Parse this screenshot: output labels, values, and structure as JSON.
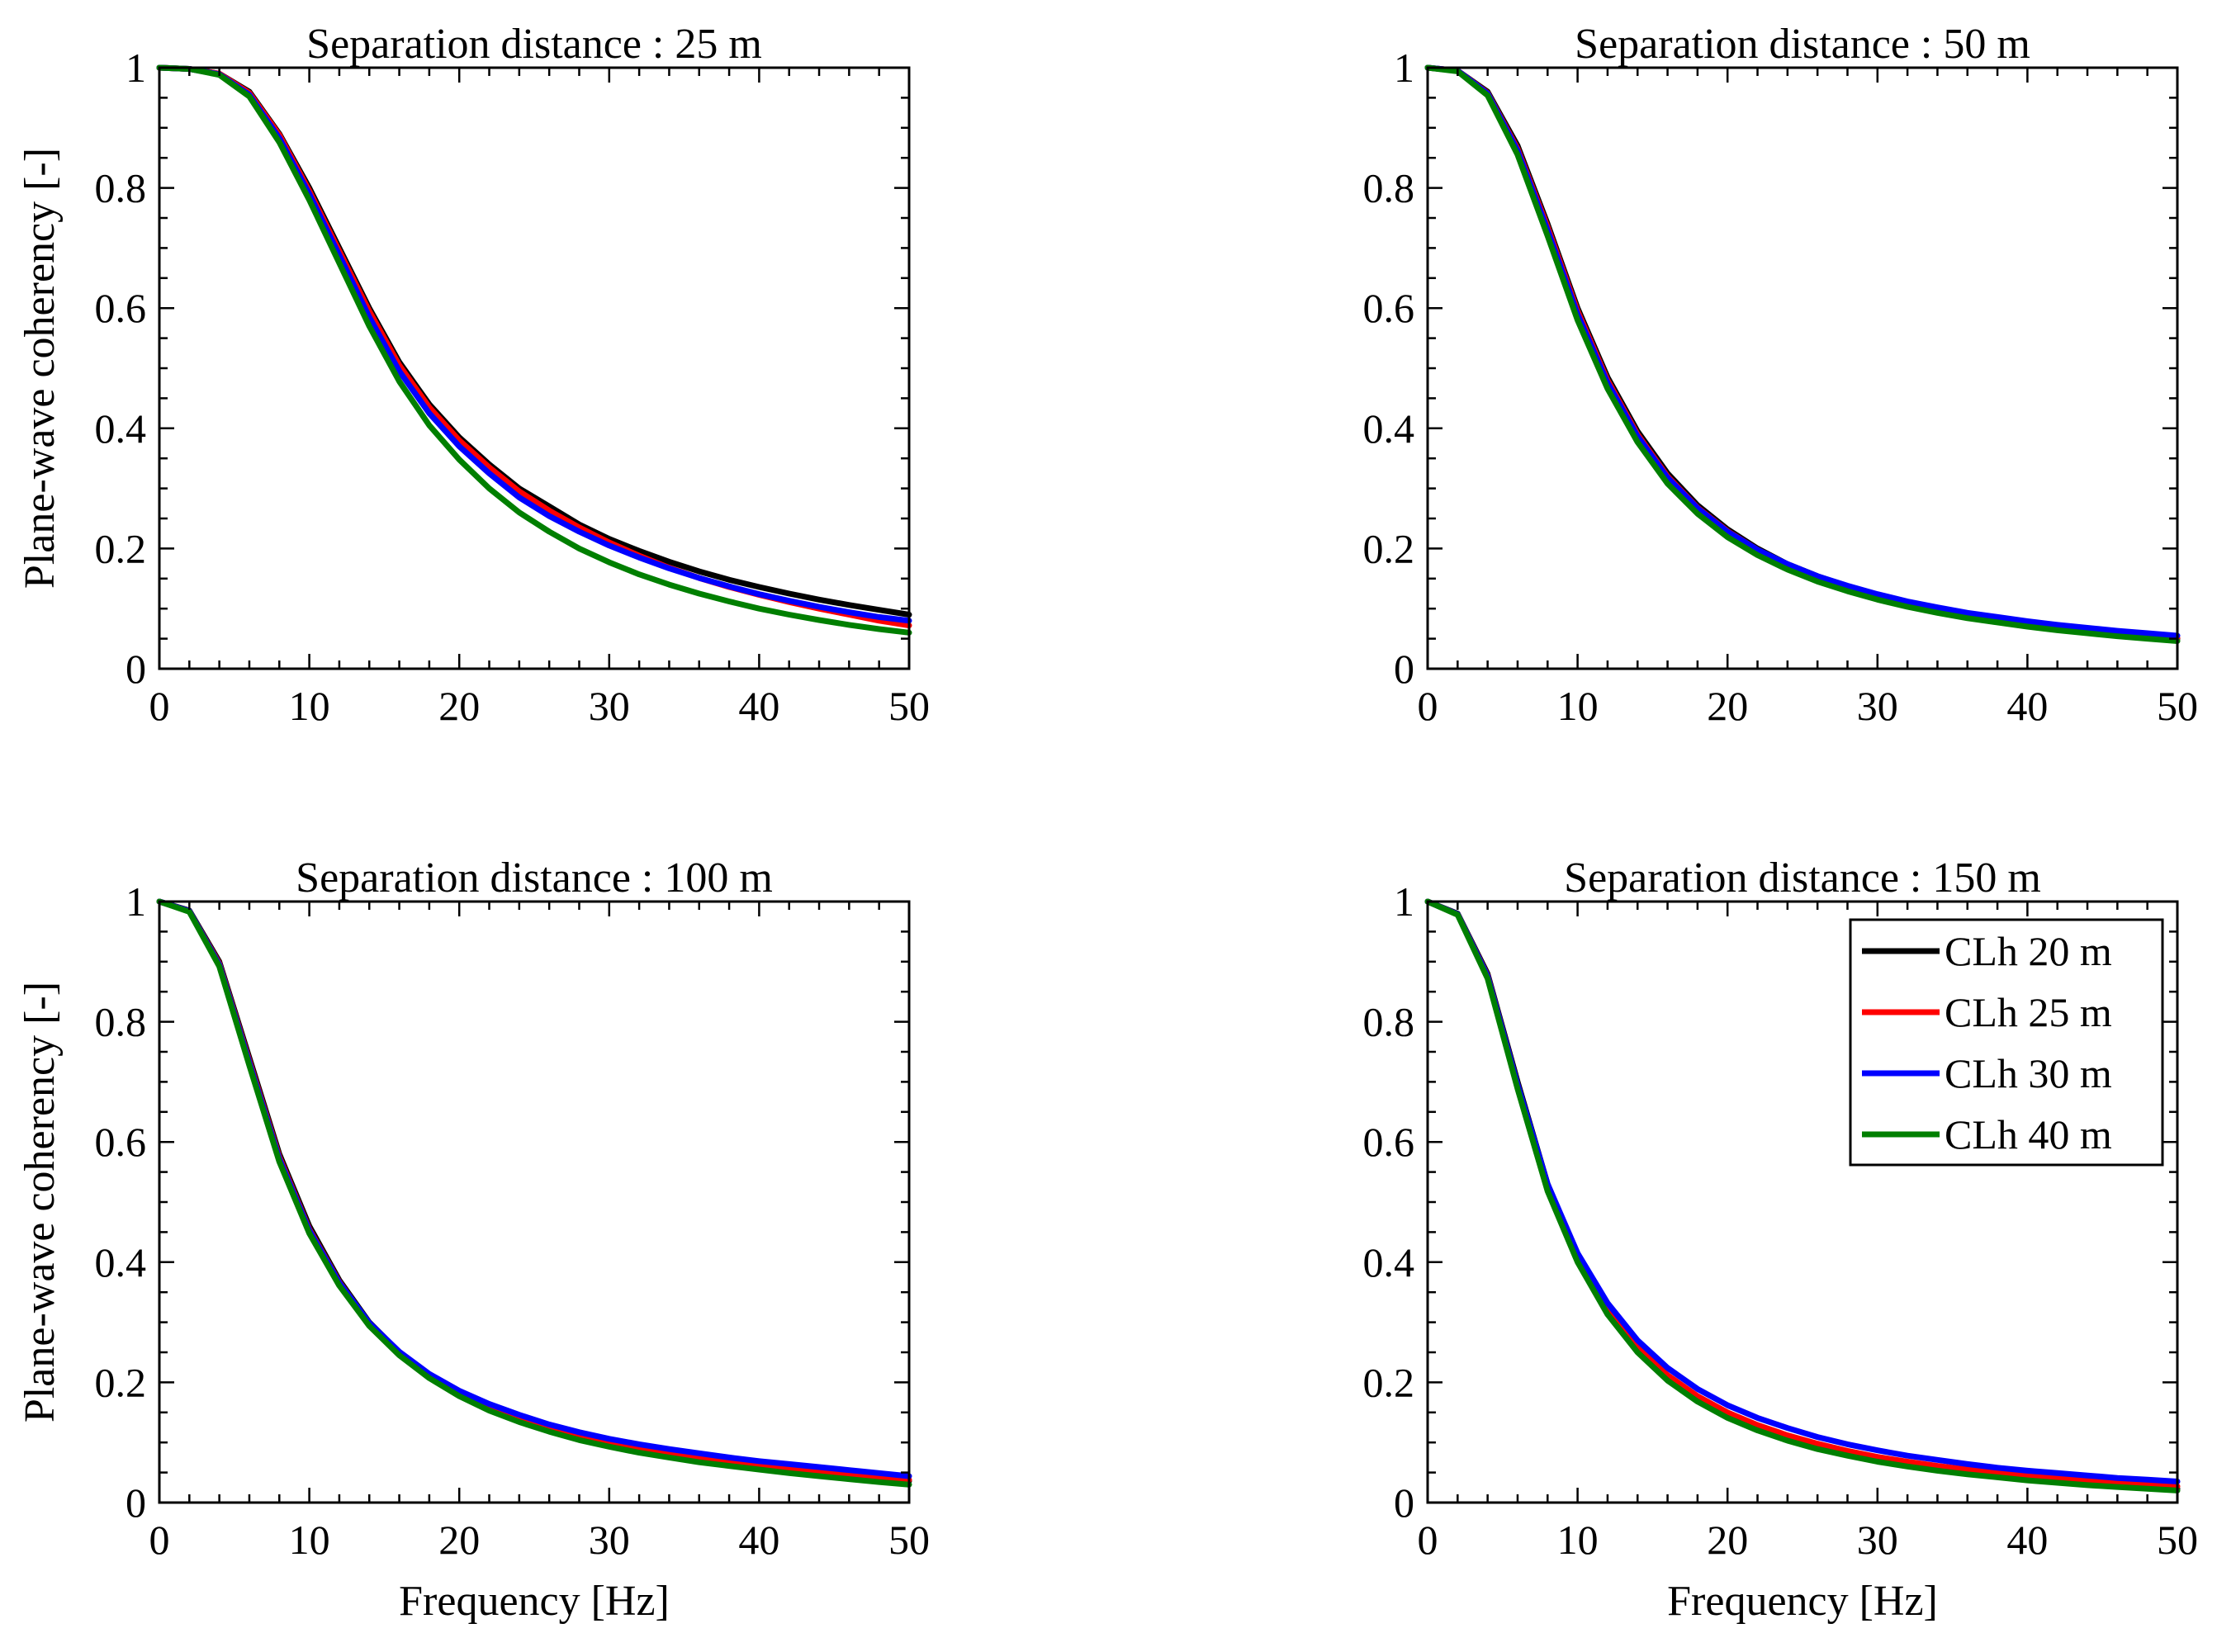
{
  "chart_data": [
    {
      "type": "line",
      "title": "Separation distance : 25 m",
      "xlabel": "",
      "ylabel": "Plane-wave coherency [-]",
      "xlim": [
        0,
        50
      ],
      "ylim": [
        0,
        1
      ],
      "xticks": [
        "0",
        "10",
        "20",
        "30",
        "40",
        "50"
      ],
      "yticks": [
        "0",
        "0.2",
        "0.4",
        "0.6",
        "0.8",
        "1"
      ],
      "legend": false,
      "x": [
        0,
        2,
        4,
        6,
        8,
        10,
        12,
        14,
        16,
        18,
        20,
        22,
        24,
        26,
        28,
        30,
        32,
        34,
        36,
        38,
        40,
        42,
        44,
        46,
        48,
        50
      ],
      "series": [
        {
          "name": "CLh 20 m",
          "values": [
            1.0,
            0.998,
            0.99,
            0.96,
            0.89,
            0.8,
            0.7,
            0.6,
            0.51,
            0.44,
            0.385,
            0.34,
            0.3,
            0.27,
            0.24,
            0.216,
            0.196,
            0.178,
            0.162,
            0.148,
            0.136,
            0.125,
            0.115,
            0.106,
            0.098,
            0.09
          ]
        },
        {
          "name": "CLh 25 m",
          "values": [
            1.0,
            0.998,
            0.99,
            0.958,
            0.888,
            0.795,
            0.695,
            0.595,
            0.505,
            0.435,
            0.38,
            0.335,
            0.295,
            0.263,
            0.235,
            0.21,
            0.188,
            0.168,
            0.151,
            0.136,
            0.123,
            0.111,
            0.1,
            0.09,
            0.08,
            0.072
          ]
        },
        {
          "name": "CLh 30 m",
          "values": [
            1.0,
            0.998,
            0.989,
            0.955,
            0.883,
            0.79,
            0.688,
            0.585,
            0.495,
            0.425,
            0.37,
            0.325,
            0.285,
            0.254,
            0.228,
            0.205,
            0.185,
            0.167,
            0.151,
            0.137,
            0.124,
            0.113,
            0.103,
            0.094,
            0.086,
            0.08
          ]
        },
        {
          "name": "CLh 40 m",
          "values": [
            1.0,
            0.998,
            0.988,
            0.952,
            0.876,
            0.78,
            0.675,
            0.57,
            0.478,
            0.405,
            0.348,
            0.3,
            0.26,
            0.228,
            0.2,
            0.177,
            0.157,
            0.14,
            0.125,
            0.112,
            0.1,
            0.09,
            0.081,
            0.073,
            0.066,
            0.06
          ]
        }
      ]
    },
    {
      "type": "line",
      "title": "Separation distance : 50 m",
      "xlabel": "",
      "ylabel": "",
      "xlim": [
        0,
        50
      ],
      "ylim": [
        0,
        1
      ],
      "xticks": [
        "0",
        "10",
        "20",
        "30",
        "40",
        "50"
      ],
      "yticks": [
        "0",
        "0.2",
        "0.4",
        "0.6",
        "0.8",
        "1"
      ],
      "legend": false,
      "x": [
        0,
        2,
        4,
        6,
        8,
        10,
        12,
        14,
        16,
        18,
        20,
        22,
        24,
        26,
        28,
        30,
        32,
        34,
        36,
        38,
        40,
        42,
        44,
        46,
        48,
        50
      ],
      "series": [
        {
          "name": "CLh 20 m",
          "values": [
            1.0,
            0.995,
            0.96,
            0.87,
            0.74,
            0.6,
            0.485,
            0.395,
            0.325,
            0.272,
            0.232,
            0.2,
            0.174,
            0.154,
            0.137,
            0.123,
            0.111,
            0.1,
            0.091,
            0.083,
            0.076,
            0.07,
            0.065,
            0.06,
            0.055,
            0.05
          ]
        },
        {
          "name": "CLh 25 m",
          "values": [
            1.0,
            0.995,
            0.958,
            0.865,
            0.735,
            0.595,
            0.48,
            0.39,
            0.32,
            0.268,
            0.229,
            0.198,
            0.173,
            0.153,
            0.136,
            0.122,
            0.11,
            0.1,
            0.091,
            0.083,
            0.076,
            0.07,
            0.065,
            0.06,
            0.055,
            0.051
          ]
        },
        {
          "name": "CLh 30 m",
          "values": [
            1.0,
            0.995,
            0.957,
            0.862,
            0.73,
            0.59,
            0.476,
            0.387,
            0.318,
            0.267,
            0.228,
            0.198,
            0.174,
            0.154,
            0.138,
            0.124,
            0.112,
            0.102,
            0.093,
            0.086,
            0.079,
            0.073,
            0.068,
            0.063,
            0.059,
            0.055
          ]
        },
        {
          "name": "CLh 40 m",
          "values": [
            1.0,
            0.994,
            0.954,
            0.855,
            0.72,
            0.58,
            0.466,
            0.377,
            0.308,
            0.258,
            0.219,
            0.189,
            0.165,
            0.145,
            0.129,
            0.115,
            0.103,
            0.093,
            0.084,
            0.077,
            0.07,
            0.064,
            0.059,
            0.054,
            0.05,
            0.046
          ]
        }
      ]
    },
    {
      "type": "line",
      "title": "Separation distance : 100 m",
      "xlabel": "Frequency [Hz]",
      "ylabel": "Plane-wave coherency [-]",
      "xlim": [
        0,
        50
      ],
      "ylim": [
        0,
        1
      ],
      "xticks": [
        "0",
        "10",
        "20",
        "30",
        "40",
        "50"
      ],
      "yticks": [
        "0",
        "0.2",
        "0.4",
        "0.6",
        "0.8",
        "1"
      ],
      "legend": false,
      "x": [
        0,
        2,
        4,
        6,
        8,
        10,
        12,
        14,
        16,
        18,
        20,
        22,
        24,
        26,
        28,
        30,
        32,
        34,
        36,
        38,
        40,
        42,
        44,
        46,
        48,
        50
      ],
      "series": [
        {
          "name": "CLh 20 m",
          "values": [
            1.0,
            0.985,
            0.9,
            0.74,
            0.58,
            0.46,
            0.37,
            0.3,
            0.25,
            0.21,
            0.18,
            0.157,
            0.138,
            0.122,
            0.108,
            0.097,
            0.088,
            0.079,
            0.072,
            0.066,
            0.06,
            0.055,
            0.05,
            0.045,
            0.04,
            0.036
          ]
        },
        {
          "name": "CLh 25 m",
          "values": [
            1.0,
            0.984,
            0.897,
            0.735,
            0.575,
            0.455,
            0.367,
            0.298,
            0.249,
            0.211,
            0.182,
            0.159,
            0.14,
            0.124,
            0.111,
            0.1,
            0.091,
            0.083,
            0.076,
            0.069,
            0.063,
            0.058,
            0.053,
            0.048,
            0.043,
            0.038
          ]
        },
        {
          "name": "CLh 30 m",
          "values": [
            1.0,
            0.984,
            0.895,
            0.732,
            0.572,
            0.453,
            0.366,
            0.299,
            0.251,
            0.214,
            0.186,
            0.164,
            0.146,
            0.13,
            0.117,
            0.106,
            0.097,
            0.089,
            0.082,
            0.075,
            0.069,
            0.064,
            0.059,
            0.054,
            0.049,
            0.044
          ]
        },
        {
          "name": "CLh 40 m",
          "values": [
            1.0,
            0.983,
            0.892,
            0.727,
            0.567,
            0.448,
            0.361,
            0.294,
            0.245,
            0.207,
            0.177,
            0.153,
            0.134,
            0.118,
            0.104,
            0.093,
            0.083,
            0.075,
            0.067,
            0.061,
            0.055,
            0.049,
            0.044,
            0.039,
            0.034,
            0.03
          ]
        }
      ]
    },
    {
      "type": "line",
      "title": "Separation distance : 150 m",
      "xlabel": "Frequency [Hz]",
      "ylabel": "",
      "xlim": [
        0,
        50
      ],
      "ylim": [
        0,
        1
      ],
      "xticks": [
        "0",
        "10",
        "20",
        "30",
        "40",
        "50"
      ],
      "yticks": [
        "0",
        "0.2",
        "0.4",
        "0.6",
        "0.8",
        "1"
      ],
      "legend": true,
      "legend_position": "top-right",
      "x": [
        0,
        2,
        4,
        6,
        8,
        10,
        12,
        14,
        16,
        18,
        20,
        22,
        24,
        26,
        28,
        30,
        32,
        34,
        36,
        38,
        40,
        42,
        44,
        46,
        48,
        50
      ],
      "series": [
        {
          "name": "CLh 20 m",
          "values": [
            1.0,
            0.98,
            0.88,
            0.7,
            0.53,
            0.41,
            0.32,
            0.255,
            0.208,
            0.172,
            0.145,
            0.124,
            0.107,
            0.093,
            0.081,
            0.071,
            0.063,
            0.056,
            0.05,
            0.045,
            0.04,
            0.036,
            0.032,
            0.029,
            0.026,
            0.023
          ]
        },
        {
          "name": "CLh 25 m",
          "values": [
            1.0,
            0.979,
            0.877,
            0.695,
            0.526,
            0.408,
            0.321,
            0.258,
            0.212,
            0.177,
            0.15,
            0.129,
            0.112,
            0.098,
            0.086,
            0.076,
            0.068,
            0.061,
            0.055,
            0.049,
            0.044,
            0.04,
            0.036,
            0.033,
            0.03,
            0.027
          ]
        },
        {
          "name": "CLh 30 m",
          "values": [
            1.0,
            0.979,
            0.876,
            0.695,
            0.53,
            0.415,
            0.332,
            0.27,
            0.224,
            0.189,
            0.162,
            0.141,
            0.124,
            0.109,
            0.097,
            0.087,
            0.078,
            0.071,
            0.064,
            0.058,
            0.053,
            0.049,
            0.045,
            0.041,
            0.038,
            0.035
          ]
        },
        {
          "name": "CLh 40 m",
          "values": [
            1.0,
            0.978,
            0.872,
            0.688,
            0.518,
            0.4,
            0.313,
            0.25,
            0.203,
            0.168,
            0.141,
            0.12,
            0.103,
            0.089,
            0.078,
            0.068,
            0.06,
            0.053,
            0.047,
            0.042,
            0.037,
            0.033,
            0.029,
            0.026,
            0.023,
            0.02
          ]
        }
      ]
    }
  ],
  "series_colors": {
    "CLh 20 m": "#000000",
    "CLh 25 m": "#ff0000",
    "CLh 30 m": "#0000ff",
    "CLh 40 m": "#007f00"
  }
}
